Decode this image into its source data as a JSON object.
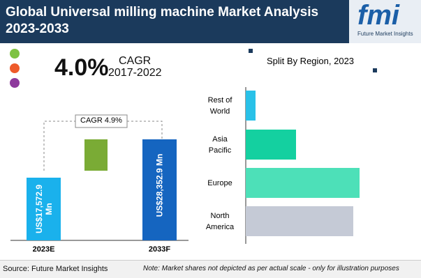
{
  "header": {
    "title": "Global Universal milling machine Market Analysis 2023-2033",
    "logo_text": "fmi",
    "logo_tagline": "Future Market Insights"
  },
  "kpi": {
    "value": "4.0%",
    "label": "CAGR",
    "period": "2017-2022"
  },
  "chart_data": [
    {
      "type": "bar",
      "categories": [
        "2023E",
        "2033F"
      ],
      "values": [
        17572.9,
        28352.9
      ],
      "value_labels": [
        "US$17,572.9 Mn",
        "US$28,352.9 Mn"
      ],
      "color": "#1ab1ec",
      "colors": [
        "#1ab1ec",
        "#1565c0"
      ],
      "annotation": "CAGR 4.9%"
    },
    {
      "type": "hbar",
      "title": "Split By Region, 2023",
      "categories": [
        "Rest of World",
        "Asia Pacific",
        "Europe",
        "North America"
      ],
      "values": [
        3.5,
        17.9,
        40.5,
        38.3
      ],
      "colors": [
        "#29c1e8",
        "#14d0a0",
        "#4de0b8",
        "#c5cad6"
      ]
    }
  ],
  "footer": {
    "source": "Source: Future Market Insights",
    "note": "Note: Market shares not depicted as per actual scale - only for illustration purposes"
  }
}
